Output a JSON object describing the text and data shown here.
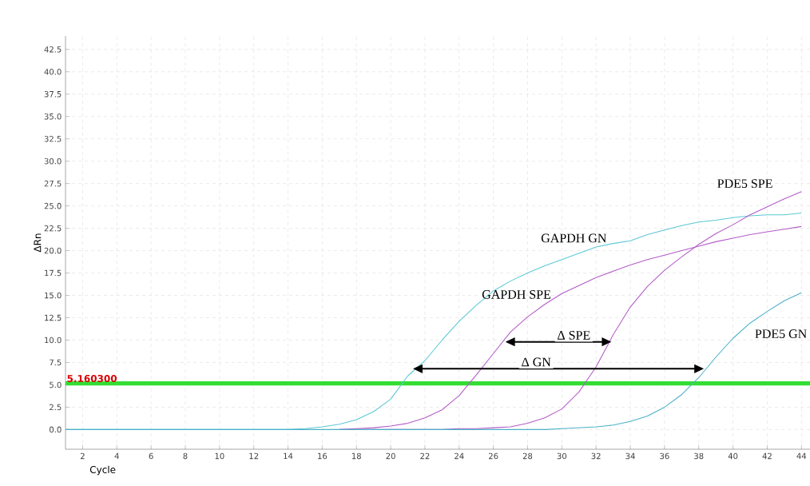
{
  "chart_data": {
    "type": "line",
    "xlabel": "Cycle",
    "ylabel": "ΔRn",
    "x": [
      1,
      2,
      3,
      4,
      5,
      6,
      7,
      8,
      9,
      10,
      11,
      12,
      13,
      14,
      15,
      16,
      17,
      18,
      19,
      20,
      21,
      22,
      23,
      24,
      25,
      26,
      27,
      28,
      29,
      30,
      31,
      32,
      33,
      34,
      35,
      36,
      37,
      38,
      39,
      40,
      41,
      42,
      43,
      44
    ],
    "series": [
      {
        "name": "GAPDH GN",
        "color": "#5cc8d4",
        "values": [
          0,
          0,
          0,
          0,
          0,
          0,
          0,
          0,
          0,
          0,
          0,
          0,
          0,
          0,
          0.1,
          0.3,
          0.6,
          1.1,
          2.0,
          3.4,
          6.0,
          7.7,
          10.0,
          12.1,
          13.9,
          15.5,
          16.6,
          17.5,
          18.3,
          19.0,
          19.7,
          20.4,
          20.8,
          21.1,
          21.8,
          22.3,
          22.8,
          23.2,
          23.4,
          23.7,
          23.9,
          24.0,
          24.0,
          24.2
        ]
      },
      {
        "name": "GAPDH SPE",
        "color": "#b45cc8",
        "values": [
          null,
          null,
          null,
          null,
          null,
          null,
          null,
          null,
          null,
          null,
          null,
          null,
          null,
          null,
          null,
          null,
          0,
          0.1,
          0.2,
          0.4,
          0.7,
          1.3,
          2.2,
          3.8,
          6.1,
          8.5,
          10.9,
          12.6,
          14.0,
          15.2,
          16.1,
          17.0,
          17.7,
          18.4,
          19.0,
          19.5,
          20.0,
          20.5,
          21.0,
          21.4,
          21.8,
          22.1,
          22.4,
          22.7
        ]
      },
      {
        "name": "PDE5 SPE",
        "color": "#b45cc8",
        "values": [
          null,
          null,
          null,
          null,
          null,
          null,
          null,
          null,
          null,
          null,
          null,
          null,
          null,
          null,
          null,
          null,
          0,
          0,
          0,
          0,
          0,
          0,
          0,
          0.1,
          0.1,
          0.2,
          0.3,
          0.7,
          1.3,
          2.3,
          4.2,
          7.0,
          10.6,
          13.7,
          16.0,
          17.8,
          19.3,
          20.7,
          21.9,
          22.9,
          24.0,
          24.9,
          25.8,
          26.6
        ]
      },
      {
        "name": "PDE5 GN",
        "color": "#4ab0c8",
        "values": [
          0,
          0,
          0,
          0,
          0,
          0,
          0,
          0,
          0,
          0,
          0,
          0,
          0,
          0,
          0,
          0,
          0,
          0,
          0,
          0,
          0,
          0,
          0,
          0,
          0,
          0,
          0,
          0,
          0,
          0.1,
          0.2,
          0.3,
          0.5,
          0.9,
          1.5,
          2.5,
          3.9,
          5.8,
          8.1,
          10.2,
          11.9,
          13.2,
          14.4,
          15.3
        ]
      }
    ],
    "annotations": [
      "Δ SPE",
      "Δ GN"
    ],
    "ref_lines": [
      {
        "axis": "y",
        "value": 5.1603,
        "label": "5.160300",
        "color": "#33dd33"
      }
    ],
    "xlim": [
      1,
      44.5
    ],
    "ylim": [
      -2.2,
      44
    ],
    "xticks": [
      2,
      4,
      6,
      8,
      10,
      12,
      14,
      16,
      18,
      20,
      22,
      24,
      26,
      28,
      30,
      32,
      34,
      36,
      38,
      40,
      42,
      44
    ],
    "yticks": [
      {
        "value": 0,
        "label": "0.0"
      },
      {
        "value": 2.5,
        "label": "2.5"
      },
      {
        "value": 5,
        "label": "5.0"
      },
      {
        "value": 7.5,
        "label": "7.5"
      },
      {
        "value": 10,
        "label": "10.0"
      },
      {
        "value": 12.5,
        "label": "12.5"
      },
      {
        "value": 15,
        "label": "15.0"
      },
      {
        "value": 17.5,
        "label": "17.5"
      },
      {
        "value": 20,
        "label": "20.0"
      },
      {
        "value": 22.5,
        "label": "22.5"
      },
      {
        "value": 25,
        "label": "25.0"
      },
      {
        "value": 27.5,
        "label": "27.5"
      },
      {
        "value": 30,
        "label": "30.0"
      },
      {
        "value": 32.5,
        "label": "32.5"
      },
      {
        "value": 35,
        "label": "35.0"
      },
      {
        "value": 37.5,
        "label": "37.5"
      },
      {
        "value": 40,
        "label": "40.0"
      },
      {
        "value": 42.5,
        "label": "42.5"
      }
    ],
    "grid": true,
    "marker": "none",
    "line_style": "solid"
  }
}
